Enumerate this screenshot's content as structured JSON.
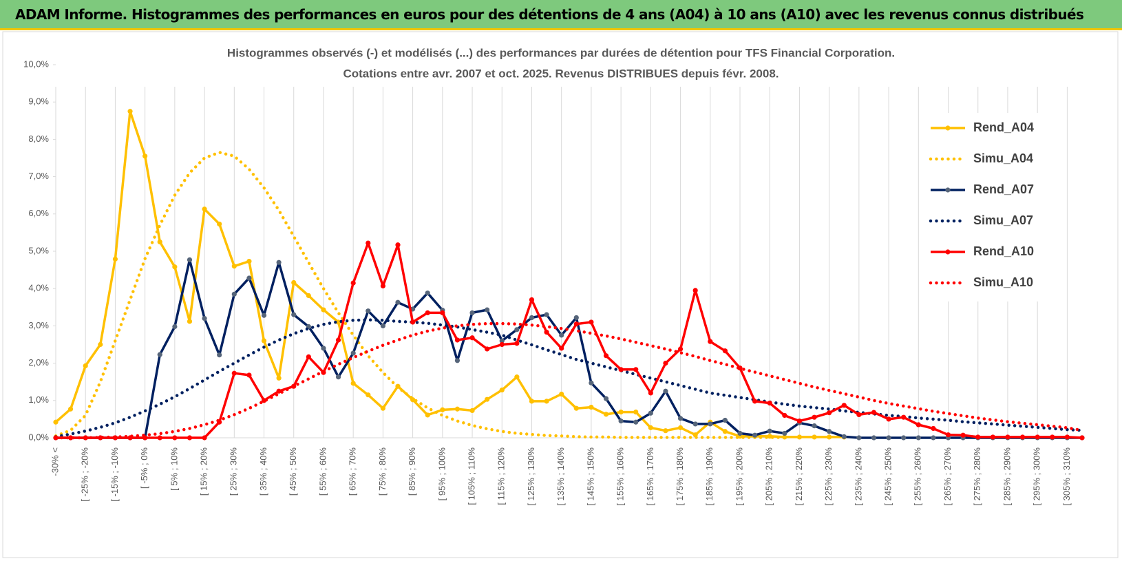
{
  "header": {
    "title": "ADAM Informe. Histogrammes des performances en euros pour des détentions de 4 ans (A04) à 10 ans (A10) avec les revenus connus distribués"
  },
  "chart_data": {
    "type": "line",
    "title": [
      "Histogrammes observés (-) et modélisés (...) des performances par durées de détention pour TFS Financial Corporation.",
      "Cotations entre avr. 2007 et oct. 2025.  Revenus DISTRIBUES depuis févr. 2008."
    ],
    "categories": [
      "-30% <",
      null,
      "[ -25% ; -20%",
      null,
      "[ -15% ; -10%",
      null,
      "[ -5% ; 0%",
      null,
      "[ 5% ; 10%",
      null,
      "[ 15% ; 20%",
      null,
      "[ 25% ; 30%",
      null,
      "[ 35% ; 40%",
      null,
      "[ 45% ; 50%",
      null,
      "[ 55% ; 60%",
      null,
      "[ 65% ; 70%",
      null,
      "[ 75% ; 80%",
      null,
      "[ 85% ; 90%",
      null,
      "[ 95% ; 100%",
      null,
      "[ 105% ; 110%",
      null,
      "[ 115% ; 120%",
      null,
      "[ 125% ; 130%",
      null,
      "[ 135% ; 140%",
      null,
      "[ 145% ; 150%",
      null,
      "[ 155% ; 160%",
      null,
      "[ 165% ; 170%",
      null,
      "[ 175% ; 180%",
      null,
      "[ 185% ; 190%",
      null,
      "[ 195% ; 200%",
      null,
      "[ 205% ; 210%",
      null,
      "[ 215% ; 220%",
      null,
      "[ 225% ; 230%",
      null,
      "[ 235% ; 240%",
      null,
      "[ 245% ; 250%",
      null,
      "[ 255% ; 260%",
      null,
      "[ 265% ; 270%",
      null,
      "[ 275% ; 280%",
      null,
      "[ 285% ; 290%",
      null,
      "[ 295% ; 300%",
      null,
      "[ 305% ; 310%",
      null
    ],
    "series": [
      {
        "name": "Rend_A04",
        "color": "#ffc000",
        "style": "solid",
        "markers": true,
        "marker_color": "#ffc000",
        "values": [
          0.42,
          0.77,
          1.93,
          2.5,
          4.79,
          8.75,
          7.55,
          5.25,
          4.58,
          3.12,
          6.13,
          5.73,
          4.6,
          4.73,
          2.6,
          1.6,
          4.16,
          3.81,
          3.43,
          3.1,
          1.46,
          1.15,
          0.79,
          1.38,
          1.02,
          0.61,
          0.75,
          0.77,
          0.73,
          1.03,
          1.28,
          1.63,
          0.98,
          0.98,
          1.17,
          0.79,
          0.82,
          0.63,
          0.69,
          0.69,
          0.27,
          0.19,
          0.27,
          0.08,
          0.42,
          0.17,
          0.04,
          0.04,
          0.04,
          0.02,
          0.02,
          0.02,
          0.02,
          0.02,
          null,
          null,
          null,
          null,
          null,
          null,
          null,
          null,
          null,
          null,
          null,
          null,
          null,
          null,
          null,
          null
        ]
      },
      {
        "name": "Simu_A04",
        "color": "#ffc000",
        "style": "dotted",
        "markers": false,
        "values": [
          0.05,
          0.2,
          0.6,
          1.5,
          2.6,
          3.7,
          4.8,
          5.7,
          6.5,
          7.1,
          7.5,
          7.65,
          7.55,
          7.2,
          6.7,
          6.1,
          5.4,
          4.7,
          4.0,
          3.35,
          2.75,
          2.2,
          1.75,
          1.35,
          1.05,
          0.8,
          0.6,
          0.45,
          0.33,
          0.24,
          0.17,
          0.12,
          0.09,
          0.06,
          0.05,
          0.03,
          0.02,
          0.02,
          0.01,
          0.01,
          0.01,
          0.01,
          0.01,
          0.01,
          0.01,
          0.01,
          0.01,
          0.01,
          0.01,
          0.01,
          null,
          null,
          null,
          null,
          null,
          null,
          null,
          null,
          null,
          null,
          null,
          null,
          null,
          null,
          null,
          null,
          null,
          null,
          null,
          null
        ]
      },
      {
        "name": "Rend_A07",
        "color": "#002060",
        "style": "solid",
        "markers": true,
        "marker_color": "#56657a",
        "values": [
          0,
          0,
          0,
          0,
          0,
          0,
          0,
          2.23,
          2.98,
          4.77,
          3.2,
          2.22,
          3.85,
          4.28,
          3.28,
          4.7,
          3.3,
          2.98,
          2.4,
          1.63,
          2.27,
          3.4,
          3.0,
          3.63,
          3.45,
          3.88,
          3.42,
          2.07,
          3.35,
          3.43,
          2.6,
          2.9,
          3.22,
          3.3,
          2.75,
          3.22,
          1.47,
          1.05,
          0.45,
          0.42,
          0.66,
          1.25,
          0.52,
          0.37,
          0.37,
          0.47,
          0.12,
          0.07,
          0.18,
          0.12,
          0.4,
          0.32,
          0.17,
          0.03,
          0,
          0,
          0,
          0,
          0,
          0,
          0,
          0,
          0,
          0,
          0,
          0,
          0,
          0,
          0,
          0
        ]
      },
      {
        "name": "Simu_A07",
        "color": "#002060",
        "style": "dotted",
        "markers": false,
        "values": [
          0.03,
          0.1,
          0.18,
          0.28,
          0.4,
          0.55,
          0.72,
          0.9,
          1.1,
          1.32,
          1.55,
          1.78,
          2.0,
          2.22,
          2.43,
          2.62,
          2.79,
          2.93,
          3.04,
          3.11,
          3.15,
          3.16,
          3.15,
          3.12,
          3.1,
          3.07,
          3.02,
          2.97,
          2.9,
          2.83,
          2.75,
          2.62,
          2.49,
          2.36,
          2.23,
          2.1,
          2.0,
          1.9,
          1.8,
          1.7,
          1.6,
          1.5,
          1.4,
          1.3,
          1.2,
          1.14,
          1.08,
          1.02,
          0.96,
          0.9,
          0.85,
          0.81,
          0.77,
          0.72,
          0.68,
          0.64,
          0.6,
          0.57,
          0.53,
          0.5,
          0.47,
          0.43,
          0.4,
          0.37,
          0.34,
          0.31,
          0.28,
          0.25,
          0.22,
          0.2
        ]
      },
      {
        "name": "Rend_A10",
        "color": "#ff0000",
        "style": "solid",
        "markers": true,
        "marker_color": "#ff0000",
        "values": [
          0,
          0,
          0,
          0,
          0,
          0,
          0,
          0,
          0,
          0,
          0,
          0.42,
          1.73,
          1.68,
          1.0,
          1.25,
          1.38,
          2.17,
          1.75,
          2.62,
          4.15,
          5.22,
          4.07,
          5.17,
          3.1,
          3.35,
          3.35,
          2.62,
          2.68,
          2.38,
          2.5,
          2.53,
          3.7,
          2.83,
          2.4,
          3.05,
          3.1,
          2.2,
          1.83,
          1.83,
          1.2,
          2.0,
          2.38,
          3.95,
          2.58,
          2.33,
          1.87,
          0.98,
          0.93,
          0.6,
          0.45,
          0.55,
          0.67,
          0.87,
          0.62,
          0.68,
          0.5,
          0.55,
          0.35,
          0.25,
          0.08,
          0.07,
          0.02,
          0.02,
          0.02,
          0.02,
          0.02,
          0.02,
          0.02,
          0
        ]
      },
      {
        "name": "Simu_A10",
        "color": "#ff0000",
        "style": "dotted",
        "markers": false,
        "values": [
          0,
          0,
          0,
          0.01,
          0.02,
          0.04,
          0.07,
          0.11,
          0.17,
          0.25,
          0.35,
          0.47,
          0.62,
          0.79,
          0.98,
          1.18,
          1.38,
          1.58,
          1.78,
          1.97,
          2.15,
          2.32,
          2.48,
          2.62,
          2.75,
          2.86,
          2.94,
          3.0,
          3.04,
          3.06,
          3.06,
          3.05,
          3.02,
          2.98,
          2.93,
          2.87,
          2.8,
          2.73,
          2.65,
          2.56,
          2.47,
          2.38,
          2.28,
          2.18,
          2.07,
          1.97,
          1.86,
          1.76,
          1.66,
          1.56,
          1.46,
          1.36,
          1.27,
          1.18,
          1.09,
          1.0,
          0.92,
          0.85,
          0.78,
          0.71,
          0.65,
          0.59,
          0.53,
          0.48,
          0.43,
          0.39,
          0.35,
          0.31,
          0.27,
          0.2
        ]
      }
    ],
    "ylim": [
      0,
      10
    ],
    "yticks": [
      {
        "value": 0,
        "label": "0,0%"
      },
      {
        "value": 1,
        "label": "1,0%"
      },
      {
        "value": 2,
        "label": "2,0%"
      },
      {
        "value": 3,
        "label": "3,0%"
      },
      {
        "value": 4,
        "label": "4,0%"
      },
      {
        "value": 5,
        "label": "5,0%"
      },
      {
        "value": 6,
        "label": "6,0%"
      },
      {
        "value": 7,
        "label": "7,0%"
      },
      {
        "value": 8,
        "label": "8,0%"
      },
      {
        "value": 9,
        "label": "9,0%"
      },
      {
        "value": 10,
        "label": "10,0%"
      }
    ],
    "grid": {
      "x": true,
      "y": false
    },
    "legend": "upper right"
  }
}
